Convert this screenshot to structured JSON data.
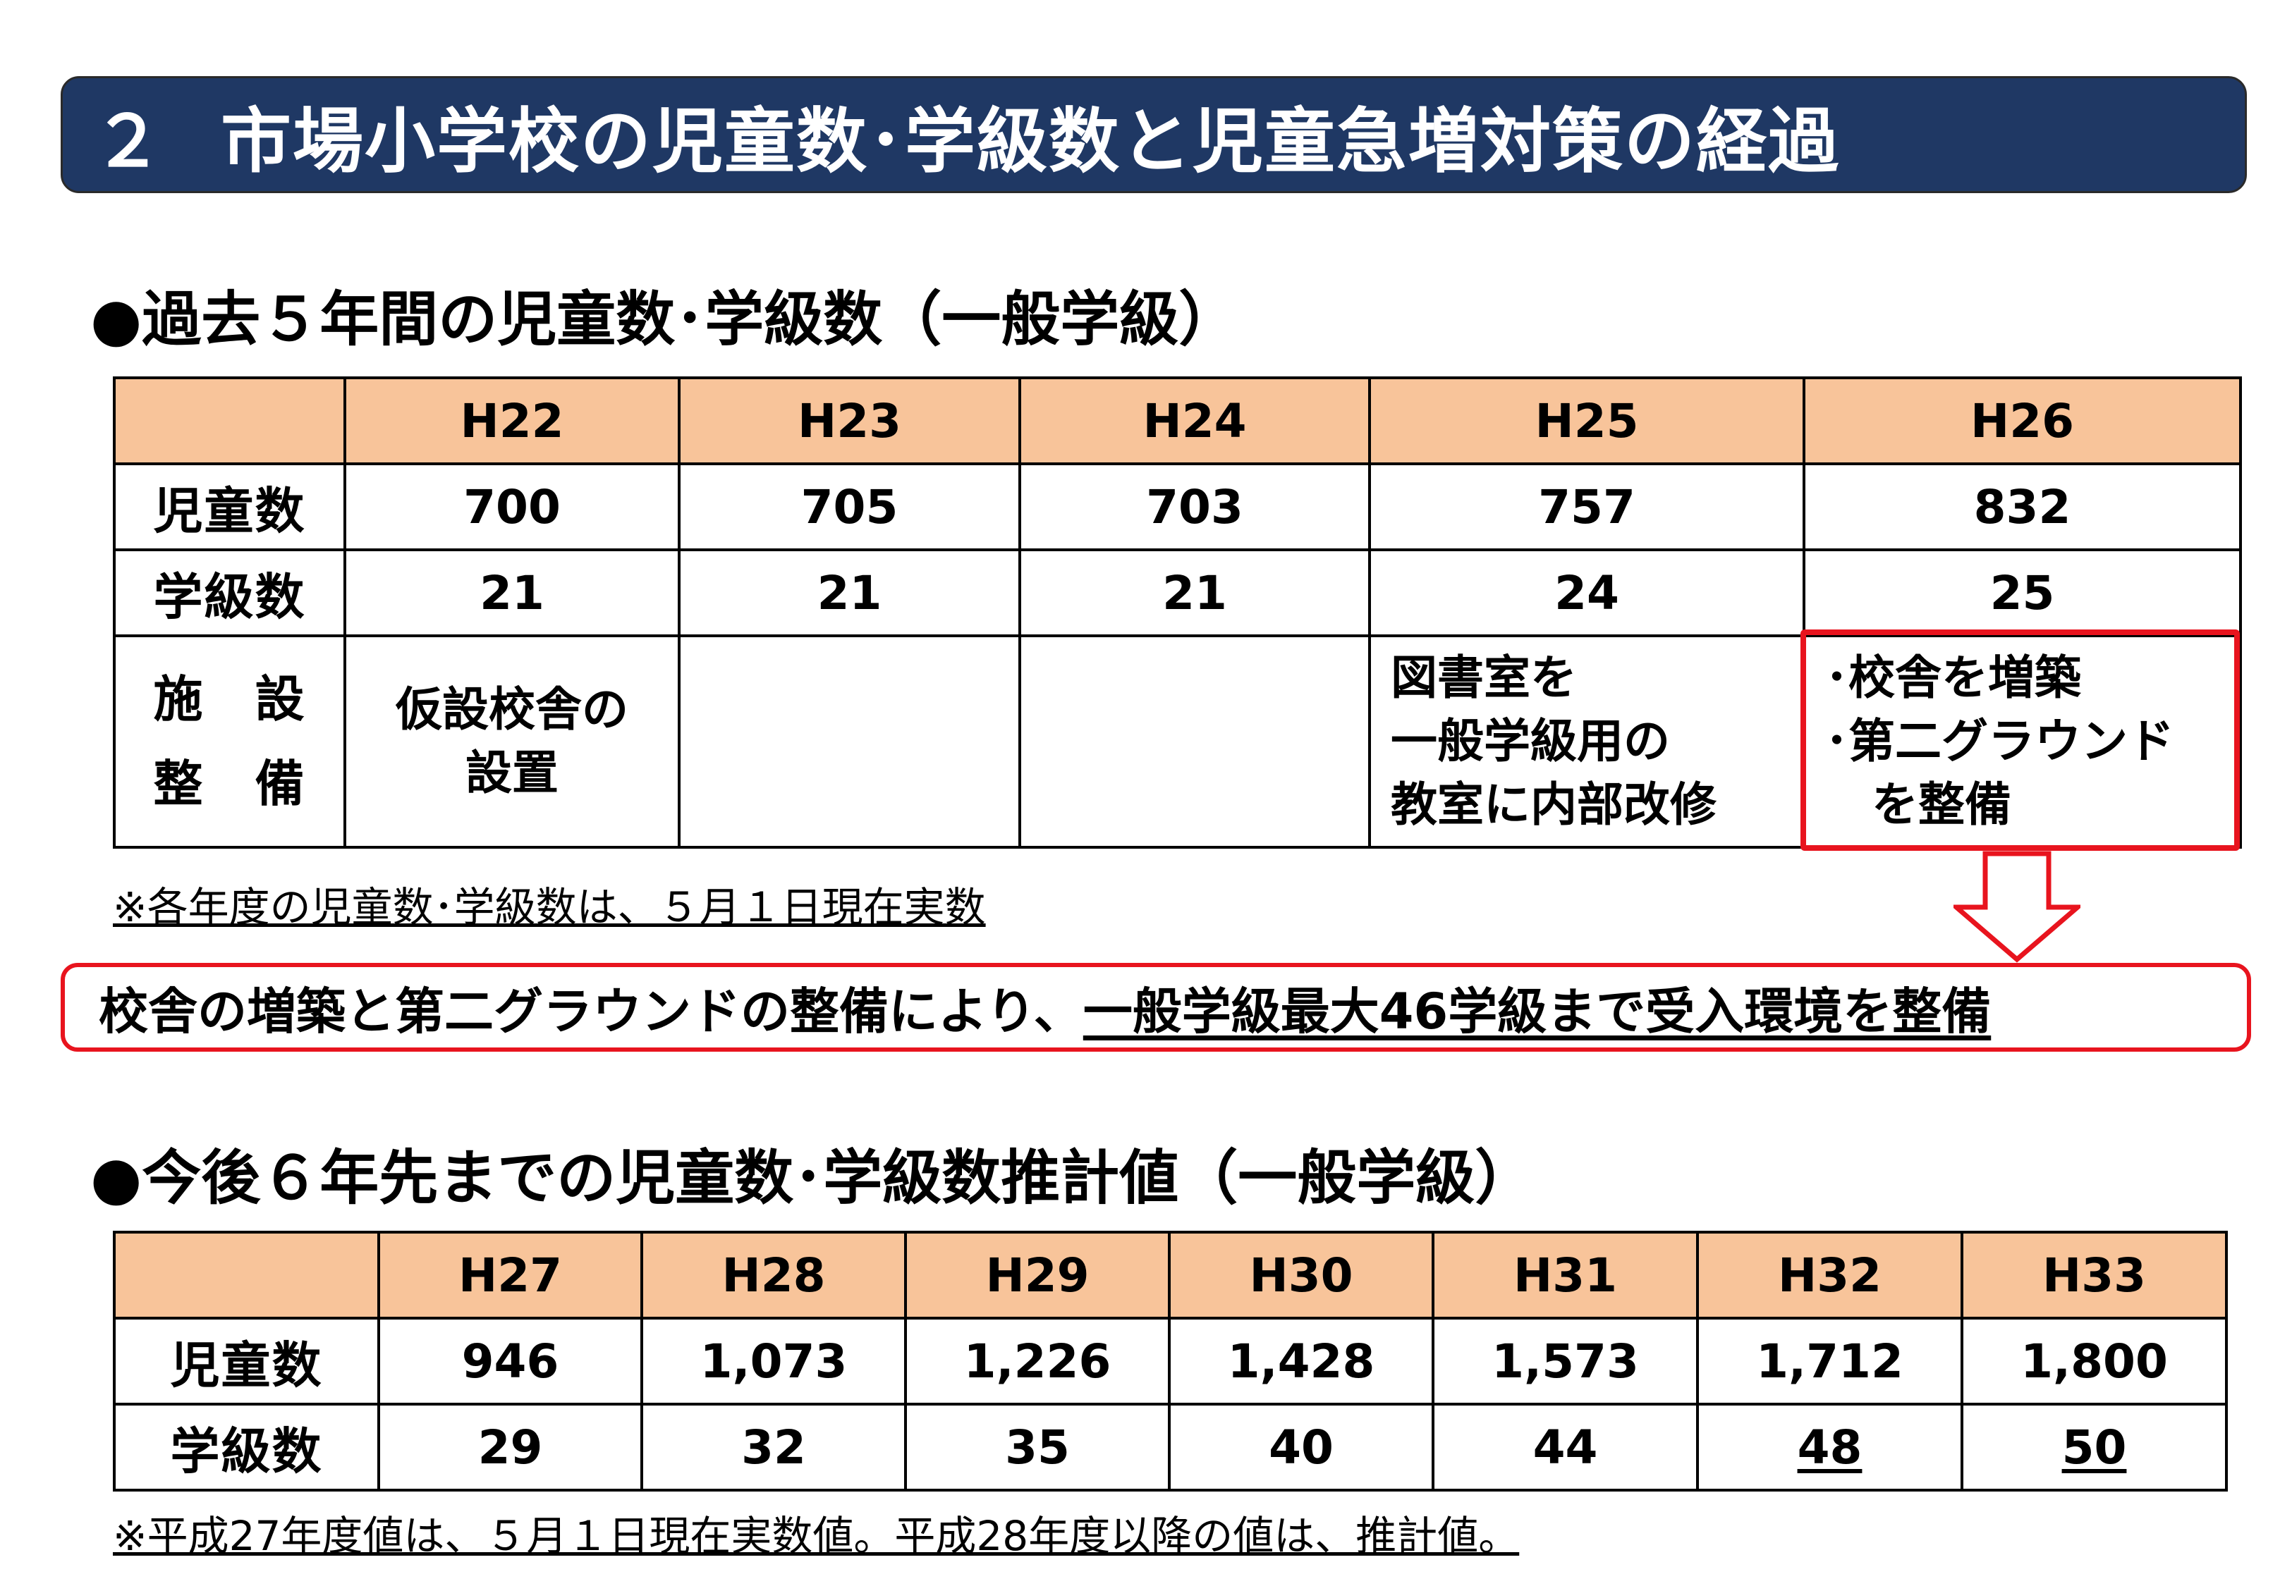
{
  "title": {
    "number": "２",
    "text": "市場小学校の児童数･学級数と児童急増対策の経過"
  },
  "section1": {
    "heading": "●過去５年間の児童数･学級数（一般学級）",
    "years": [
      "H22",
      "H23",
      "H24",
      "H25",
      "H26"
    ],
    "rows": [
      {
        "label": "児童数",
        "values": [
          "700",
          "705",
          "703",
          "757",
          "832"
        ]
      },
      {
        "label": "学級数",
        "values": [
          "21",
          "21",
          "21",
          "24",
          "25"
        ]
      }
    ],
    "facility": {
      "label_line1": "施　設",
      "label_line2": "整　備",
      "H22": [
        "仮設校舎の",
        "設置"
      ],
      "H25": [
        "図書室を",
        "一般学級用の",
        "教室に内部改修"
      ],
      "H26": [
        "･校舎を増築",
        "･第二グラウンド",
        "　を整備"
      ]
    },
    "note": "※各年度の児童数･学級数は、５月１日現在実数"
  },
  "result": {
    "text_plain": "校舎の増築と第二グラウンドの整備により、",
    "text_underlined": "一般学級最大46学級まで受入環境を整備"
  },
  "section2": {
    "heading": "●今後６年先までの児童数･学級数推計値（一般学級）",
    "years": [
      "H27",
      "H28",
      "H29",
      "H30",
      "H31",
      "H32",
      "H33"
    ],
    "rows": [
      {
        "label": "児童数",
        "values": [
          "946",
          "1,073",
          "1,226",
          "1,428",
          "1,573",
          "1,712",
          "1,800"
        ]
      },
      {
        "label": "学級数",
        "values": [
          "29",
          "32",
          "35",
          "40",
          "44",
          "48",
          "50"
        ]
      }
    ],
    "note": "※平成27年度値は、５月１日現在実数値。平成28年度以降の値は、推計値。"
  },
  "colors": {
    "title_bg": "#1f3864",
    "header_bg": "#f8c49a",
    "highlight_red": "#e8141e"
  }
}
